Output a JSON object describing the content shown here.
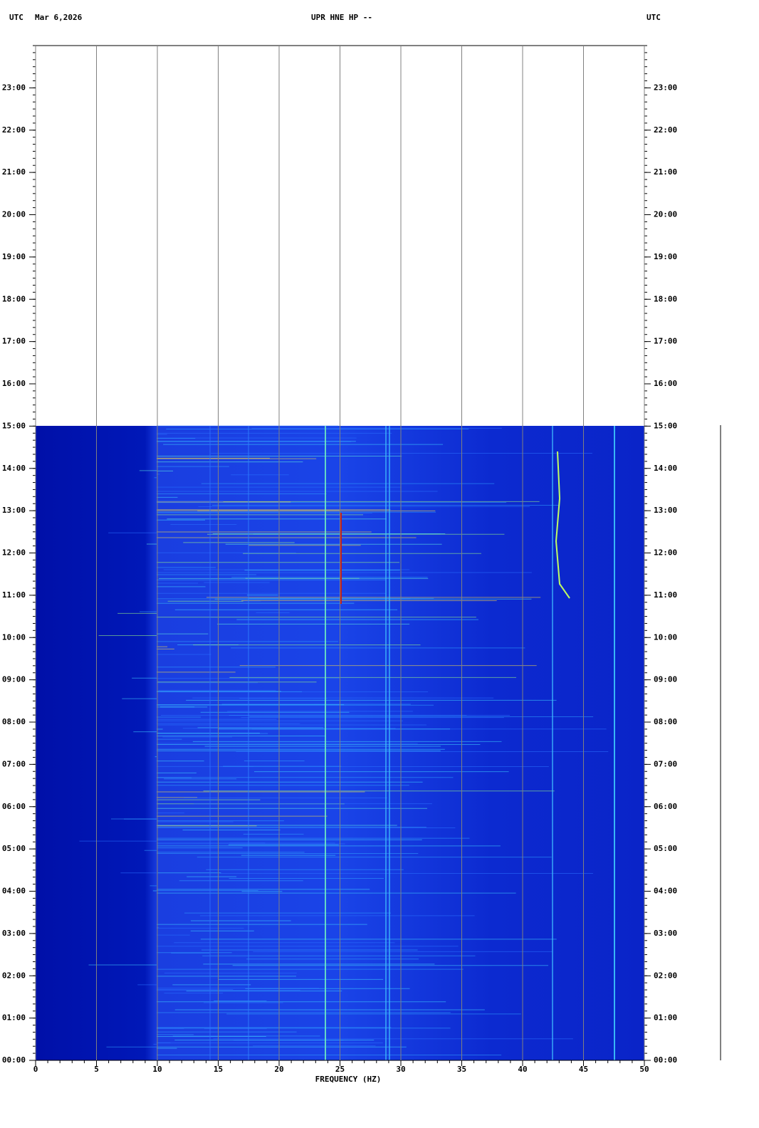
{
  "chart_data": {
    "type": "spectrogram",
    "title": "UPR HNE HP --",
    "timezone_left": "UTC",
    "date": "Mar 6,2026",
    "timezone_right": "UTC",
    "xlabel": "FREQUENCY (HZ)",
    "xlim": [
      0,
      50
    ],
    "xticks": [
      0,
      5,
      10,
      15,
      20,
      25,
      30,
      35,
      40,
      45,
      50
    ],
    "ylim": [
      0,
      24
    ],
    "yticks": [
      {
        "value": 0,
        "label": "00:00"
      },
      {
        "value": 1,
        "label": "01:00"
      },
      {
        "value": 2,
        "label": "02:00"
      },
      {
        "value": 3,
        "label": "03:00"
      },
      {
        "value": 4,
        "label": "04:00"
      },
      {
        "value": 5,
        "label": "05:00"
      },
      {
        "value": 6,
        "label": "06:00"
      },
      {
        "value": 7,
        "label": "07:00"
      },
      {
        "value": 8,
        "label": "08:00"
      },
      {
        "value": 9,
        "label": "09:00"
      },
      {
        "value": 10,
        "label": "10:00"
      },
      {
        "value": 11,
        "label": "11:00"
      },
      {
        "value": 12,
        "label": "12:00"
      },
      {
        "value": 13,
        "label": "13:00"
      },
      {
        "value": 14,
        "label": "14:00"
      },
      {
        "value": 15,
        "label": "15:00"
      },
      {
        "value": 16,
        "label": "16:00"
      },
      {
        "value": 17,
        "label": "17:00"
      },
      {
        "value": 18,
        "label": "18:00"
      },
      {
        "value": 19,
        "label": "19:00"
      },
      {
        "value": 20,
        "label": "20:00"
      },
      {
        "value": 21,
        "label": "21:00"
      },
      {
        "value": 22,
        "label": "22:00"
      },
      {
        "value": 23,
        "label": "23:00"
      }
    ],
    "grid": true
  }
}
